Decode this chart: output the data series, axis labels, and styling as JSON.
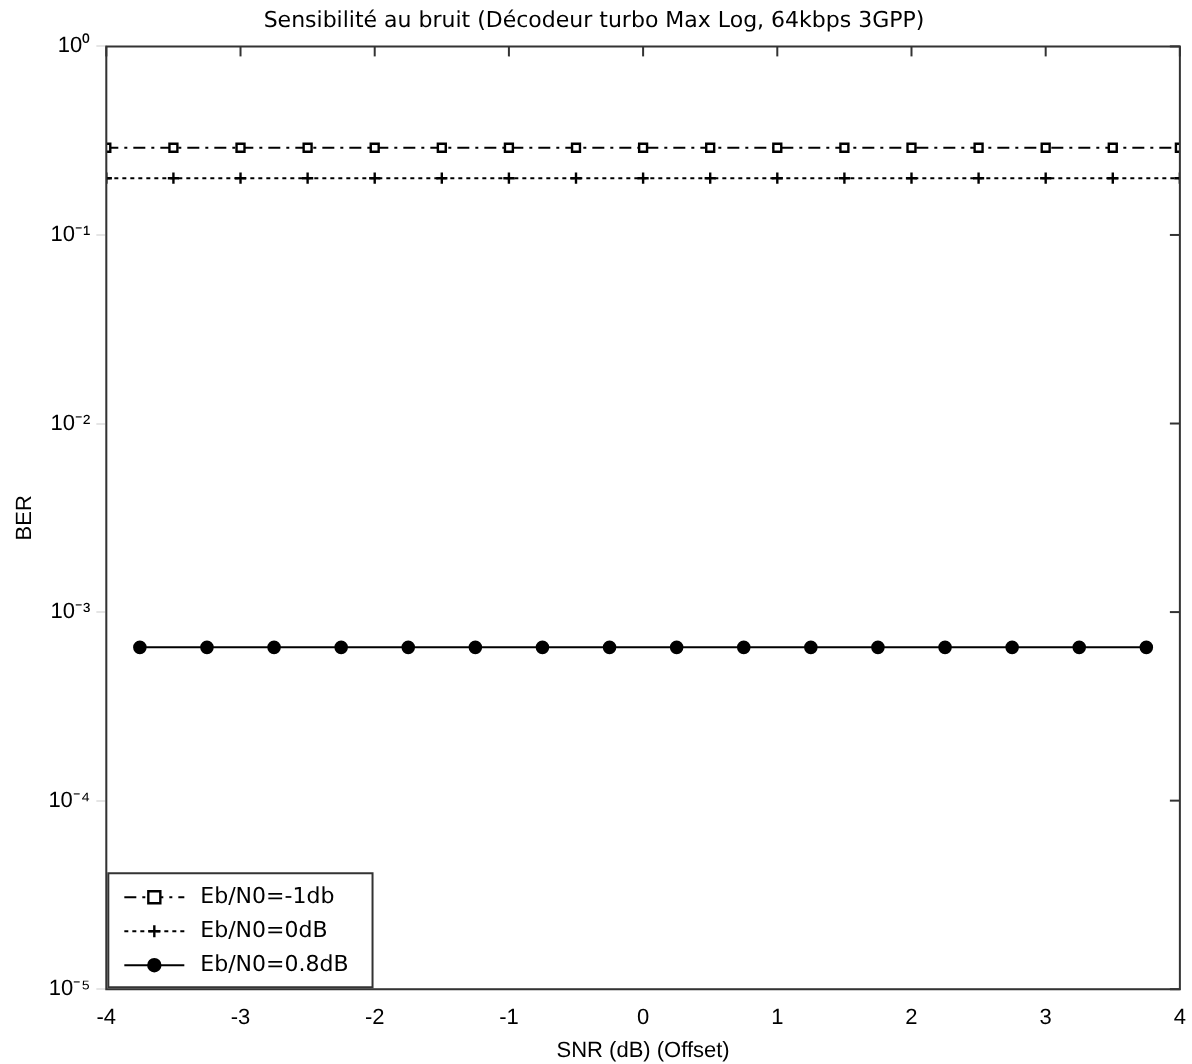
{
  "chart_data": {
    "type": "line",
    "title": "Sensibilité au bruit (Décodeur turbo Max Log, 64kbps 3GPP)",
    "xlabel": "SNR (dB) (Offset)",
    "ylabel": "BER",
    "log": "y",
    "grid": false,
    "legend": "bottom left",
    "xlim": [
      -4,
      4
    ],
    "xticks": [
      -4,
      -3,
      -2,
      -1,
      0,
      1,
      2,
      3,
      4
    ],
    "ylim": [
      1e-05,
      1
    ],
    "yticks": [
      {
        "value": 1,
        "label": "10⁰"
      },
      {
        "value": 0.1,
        "label": "10⁻¹"
      },
      {
        "value": 0.01,
        "label": "10⁻²"
      },
      {
        "value": 0.001,
        "label": "10⁻³"
      },
      {
        "value": 0.0001,
        "label": "10⁻⁴"
      },
      {
        "value": 1e-05,
        "label": "10⁻⁵"
      }
    ],
    "series": [
      {
        "name": "Eb/N0=-1db",
        "color": "#000000",
        "marker": "square",
        "line_style": "dashdot",
        "x": [
          -4,
          -3.5,
          -3,
          -2.5,
          -2,
          -1.5,
          -1,
          -0.5,
          0,
          0.5,
          1,
          1.5,
          2,
          2.5,
          3,
          3.5,
          4
        ],
        "values": [
          0.29,
          0.29,
          0.29,
          0.29,
          0.29,
          0.29,
          0.29,
          0.29,
          0.29,
          0.29,
          0.29,
          0.29,
          0.29,
          0.29,
          0.29,
          0.29,
          0.29
        ]
      },
      {
        "name": "Eb/N0=0dB",
        "color": "#000000",
        "marker": "cross",
        "line_style": "dotted",
        "x": [
          -4,
          -3.5,
          -3,
          -2.5,
          -2,
          -1.5,
          -1,
          -0.5,
          0,
          0.5,
          1,
          1.5,
          2,
          2.5,
          3,
          3.5,
          4
        ],
        "values": [
          0.2,
          0.2,
          0.2,
          0.2,
          0.2,
          0.2,
          0.2,
          0.2,
          0.2,
          0.2,
          0.2,
          0.2,
          0.2,
          0.2,
          0.2,
          0.2,
          0.2
        ]
      },
      {
        "name": "Eb/N0=0.8dB",
        "color": "#000000",
        "marker": "circle",
        "line_style": "solid",
        "x": [
          -3.75,
          -3.25,
          -2.75,
          -2.25,
          -1.75,
          -1.25,
          -0.75,
          -0.25,
          0.25,
          0.75,
          1.25,
          1.75,
          2.25,
          2.75,
          3.25,
          3.75
        ],
        "values": [
          0.00065,
          0.00065,
          0.00065,
          0.00065,
          0.00065,
          0.00065,
          0.00065,
          0.00065,
          0.00065,
          0.00065,
          0.00065,
          0.00065,
          0.00065,
          0.00065,
          0.00065,
          0.00065
        ]
      }
    ]
  }
}
